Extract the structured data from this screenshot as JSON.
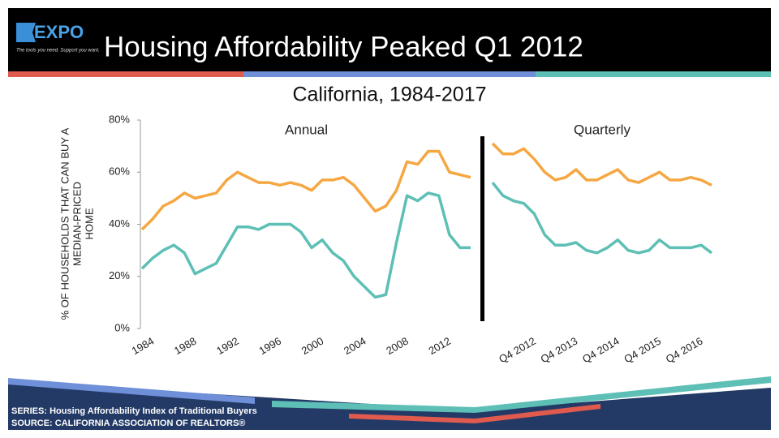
{
  "header": {
    "logo": "EXPO",
    "tagline": "The tools you need. Support you want.",
    "title": "Housing Affordability Peaked Q1 2012"
  },
  "subtitle": "California, 1984-2017",
  "y_label_lines": [
    "% OF HOUSEHOLDS THAT CAN BUY A",
    "MEDIAN-PRICED",
    "HOME"
  ],
  "footer": {
    "series": "SERIES: Housing Affordability Index of Traditional Buyers",
    "source": "SOURCE:  CALIFORNIA ASSOCIATION OF REALTORS®"
  },
  "chart_data": [
    {
      "type": "line",
      "title": "Annual",
      "categories": [
        "1984",
        null,
        null,
        null,
        "1988",
        null,
        null,
        null,
        "1992",
        null,
        null,
        null,
        "1996",
        null,
        null,
        null,
        "2000",
        null,
        null,
        null,
        "2004",
        null,
        null,
        null,
        "2008",
        null,
        null,
        null,
        "2012",
        null,
        null,
        null
      ],
      "series": [
        {
          "color": "#f5a742",
          "values": [
            38,
            42,
            47,
            49,
            52,
            50,
            51,
            52,
            57,
            60,
            58,
            56,
            56,
            55,
            56,
            55,
            53,
            57,
            57,
            58,
            55,
            50,
            45,
            47,
            53,
            64,
            63,
            68,
            68,
            60,
            59,
            58
          ]
        },
        {
          "color": "#5dbfb5",
          "values": [
            23,
            27,
            30,
            32,
            29,
            21,
            23,
            25,
            32,
            39,
            39,
            38,
            40,
            40,
            40,
            37,
            31,
            34,
            29,
            26,
            20,
            16,
            12,
            13,
            33,
            51,
            49,
            52,
            51,
            36,
            31,
            31
          ]
        }
      ],
      "ylim": [
        0,
        80
      ],
      "yticks": [
        {
          "value": 0,
          "label": "0%"
        },
        {
          "value": 20,
          "label": "20%"
        },
        {
          "value": 40,
          "label": "40%"
        },
        {
          "value": 60,
          "label": "60%"
        },
        {
          "value": 80,
          "label": "80%"
        }
      ]
    },
    {
      "type": "line",
      "title": "Quarterly",
      "categories": [
        null,
        null,
        null,
        "Q4 2012",
        null,
        null,
        null,
        "Q4 2013",
        null,
        null,
        null,
        "Q4 2014",
        null,
        null,
        null,
        "Q4 2015",
        null,
        null,
        null,
        "Q4 2016",
        null,
        null
      ],
      "series": [
        {
          "color": "#f5a742",
          "values": [
            71,
            67,
            67,
            69,
            65,
            60,
            57,
            58,
            61,
            57,
            57,
            59,
            61,
            57,
            56,
            58,
            60,
            57,
            57,
            58,
            57,
            55
          ]
        },
        {
          "color": "#5dbfb5",
          "values": [
            56,
            51,
            49,
            48,
            44,
            36,
            32,
            32,
            33,
            30,
            29,
            31,
            34,
            30,
            29,
            30,
            34,
            31,
            31,
            31,
            32,
            29
          ]
        }
      ],
      "ylim": [
        0,
        80
      ]
    }
  ]
}
